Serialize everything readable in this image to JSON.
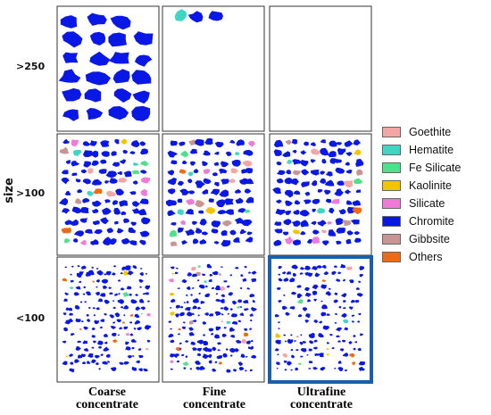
{
  "axis_label": ">size",
  "axis_text": "size",
  "row_labels": [
    ">250",
    ">100",
    "<100"
  ],
  "columns": [
    {
      "line1": "Coarse",
      "line2": "concentrate"
    },
    {
      "line1": "Fine",
      "line2": "concentrate"
    },
    {
      "line1": "Ultrafine",
      "line2": "concentrate"
    }
  ],
  "legend": [
    {
      "label": "Goethite",
      "color": "#f4a6a6"
    },
    {
      "label": "Hematite",
      "color": "#3fd6c4"
    },
    {
      "label": "Fe Silicate",
      "color": "#4ee08a"
    },
    {
      "label": "Kaolinite",
      "color": "#f5c400"
    },
    {
      "label": "Silicate",
      "color": "#f07ad8"
    },
    {
      "label": "Chromite",
      "color": "#0a18e6"
    },
    {
      "label": "Gibbsite",
      "color": "#c99494"
    },
    {
      "label": "Others",
      "color": "#f06a12"
    }
  ],
  "highlight_border_color": "#1d5fa6",
  "grid": {
    "cells": [
      {
        "row": 0,
        "col": 0,
        "density": "large",
        "empty": false
      },
      {
        "row": 0,
        "col": 1,
        "density": "sparse",
        "empty": false
      },
      {
        "row": 0,
        "col": 2,
        "density": "none",
        "empty": true
      },
      {
        "row": 1,
        "col": 0,
        "density": "medium",
        "empty": false
      },
      {
        "row": 1,
        "col": 1,
        "density": "medium",
        "empty": false
      },
      {
        "row": 1,
        "col": 2,
        "density": "medium",
        "empty": false
      },
      {
        "row": 2,
        "col": 0,
        "density": "fine",
        "empty": false
      },
      {
        "row": 2,
        "col": 1,
        "density": "fine",
        "empty": false
      },
      {
        "row": 2,
        "col": 2,
        "density": "fine",
        "empty": false,
        "highlighted": true
      }
    ]
  }
}
